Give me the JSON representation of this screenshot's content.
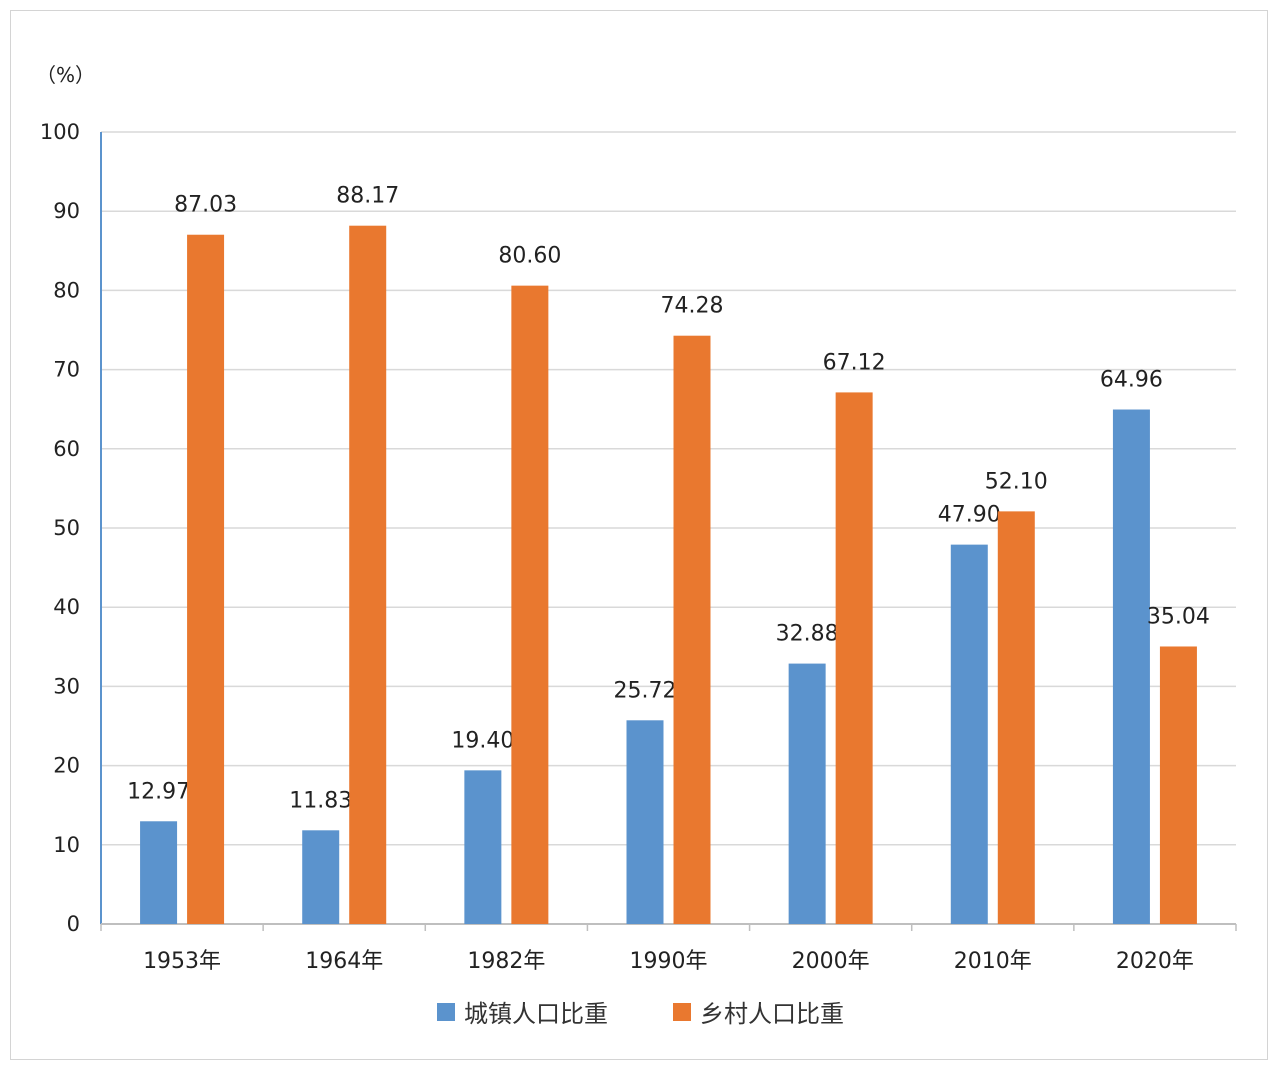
{
  "chart_data": {
    "type": "bar",
    "unit_label": "（%）",
    "categories": [
      "1953年",
      "1964年",
      "1982年",
      "1990年",
      "2000年",
      "2010年",
      "2020年"
    ],
    "series": [
      {
        "name": "城镇人口比重",
        "color": "#5b93cd",
        "values": [
          12.97,
          11.83,
          19.4,
          25.72,
          32.88,
          47.9,
          64.96
        ],
        "labels": [
          "12.97",
          "11.83",
          "19.40",
          "25.72",
          "32.88",
          "47.90",
          "64.96"
        ]
      },
      {
        "name": "乡村人口比重",
        "color": "#e9782f",
        "values": [
          87.03,
          88.17,
          80.6,
          74.28,
          67.12,
          52.1,
          35.04
        ],
        "labels": [
          "87.03",
          "88.17",
          "80.60",
          "74.28",
          "67.12",
          "52.10",
          "35.04"
        ]
      }
    ],
    "ylim": [
      0,
      100
    ],
    "yticks": [
      0,
      10,
      20,
      30,
      40,
      50,
      60,
      70,
      80,
      90,
      100
    ],
    "grid": true,
    "legend_position": "bottom-center",
    "axis_color": "#5b93cd",
    "grid_color": "#d9d9d9"
  }
}
